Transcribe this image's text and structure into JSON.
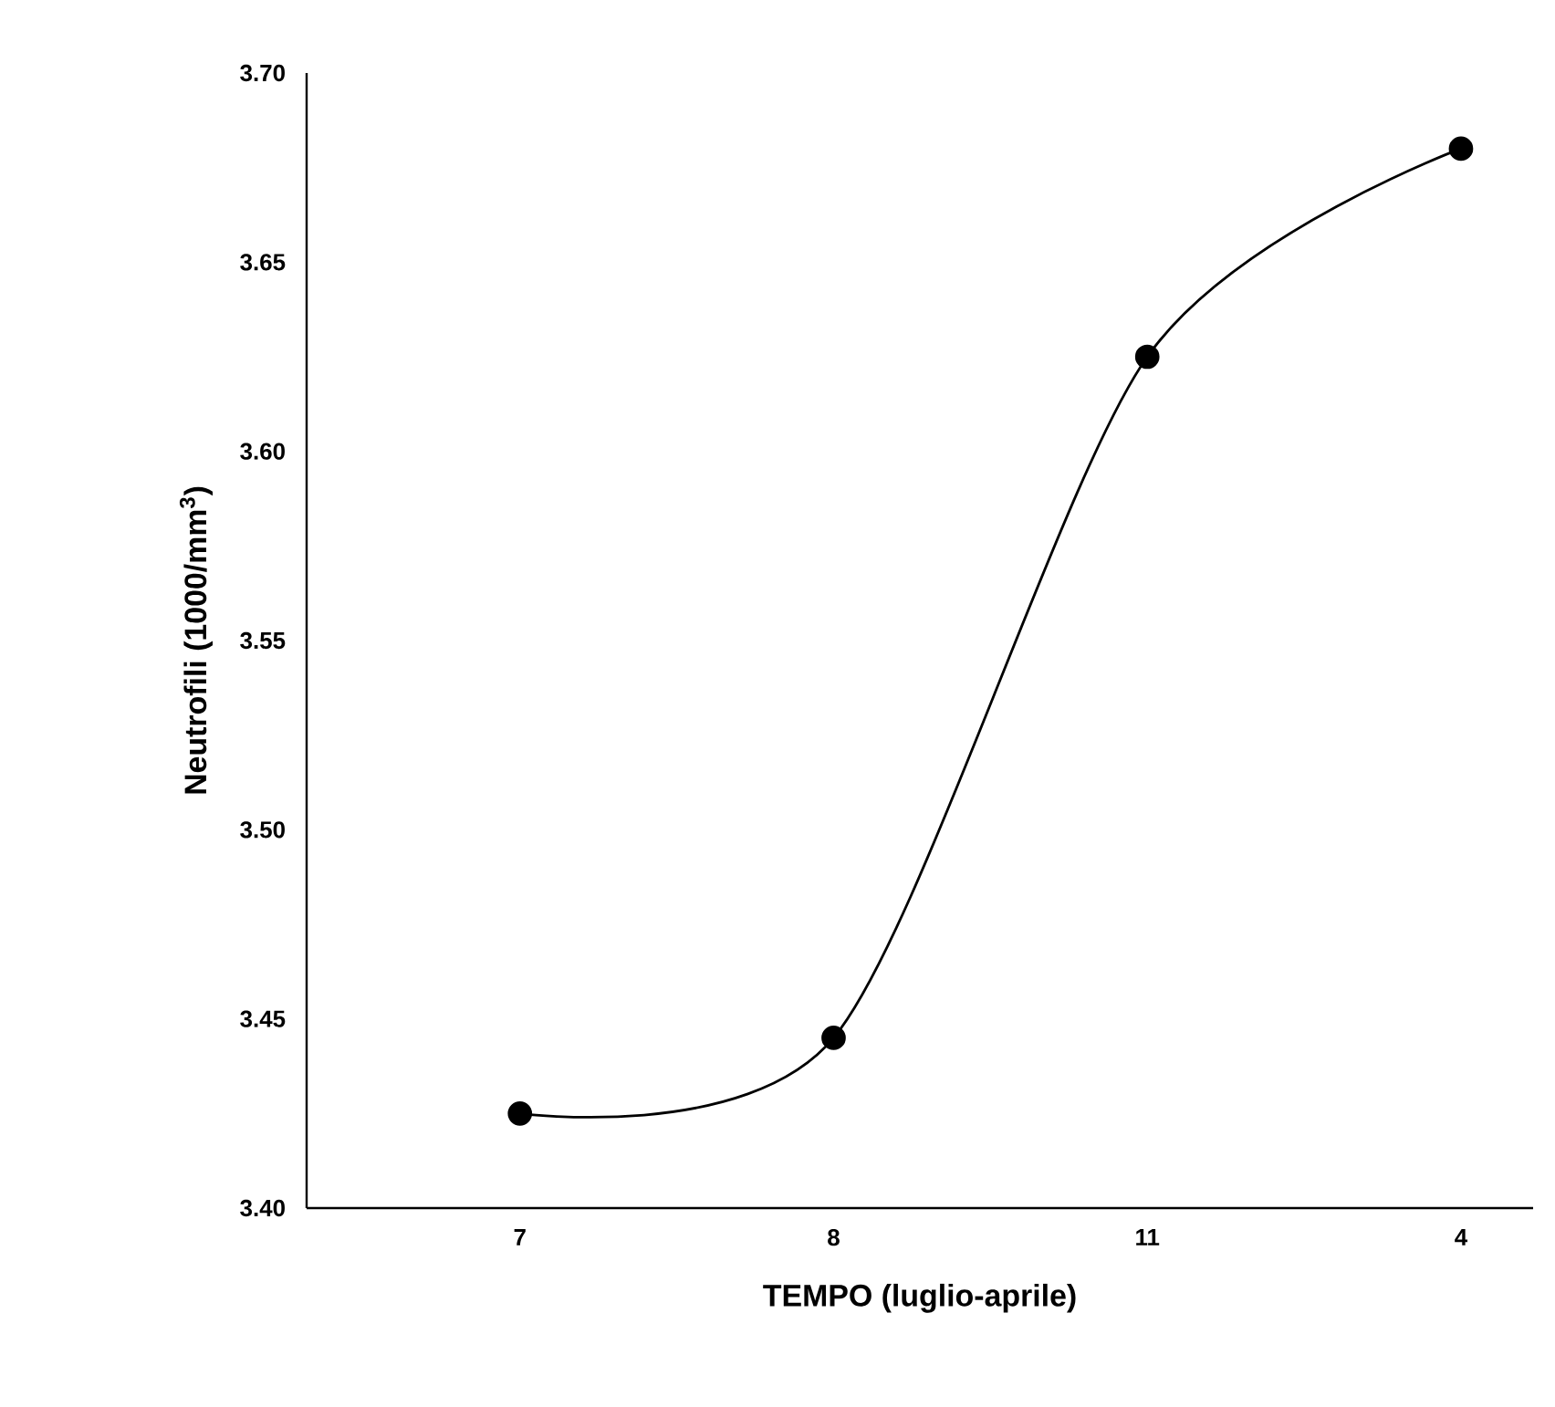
{
  "chart_data": {
    "type": "line",
    "xlabel": "TEMPO (luglio-aprile)",
    "ylabel": "Neutrofili (1000/mm$^{3}$)",
    "categories": [
      "7",
      "8",
      "11",
      "4"
    ],
    "series": [
      {
        "color": "#000000",
        "values": [
          3.425,
          3.445,
          3.625,
          3.68
        ]
      }
    ],
    "ylim": [
      3.4,
      3.7
    ],
    "yticks": [
      {
        "value": 3.4,
        "label": "3.40"
      },
      {
        "value": 3.45,
        "label": "3.45"
      },
      {
        "value": 3.5,
        "label": "3.50"
      },
      {
        "value": 3.55,
        "label": "3.55"
      },
      {
        "value": 3.6,
        "label": "3.60"
      },
      {
        "value": 3.65,
        "label": "3.65"
      },
      {
        "value": 3.7,
        "label": "3.70"
      }
    ],
    "marker": "circle",
    "line_style": "solid"
  }
}
